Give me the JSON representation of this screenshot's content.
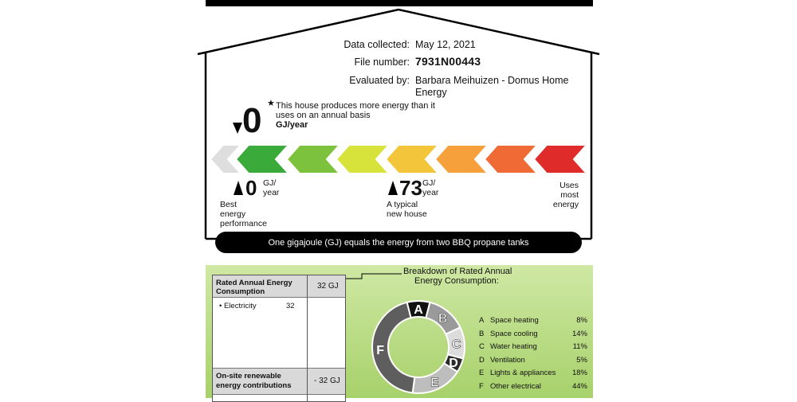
{
  "house_info": {
    "date_label": "Data collected:",
    "date_value": "May 12, 2021",
    "file_label": "File number:",
    "file_value": "7931N00443",
    "evaluator_label": "Evaluated by:",
    "evaluator_line1": "Barbara Meihuizen - Domus Home",
    "evaluator_line2": "Energy"
  },
  "rating": {
    "value": "0",
    "star": "★",
    "note_line1": "This house produces more energy than it",
    "note_line2": "uses on an annual basis",
    "unit": "GJ/year"
  },
  "scale": {
    "best_value": "0",
    "best_unit_line1": "GJ/",
    "best_unit_line2": "year",
    "best_label_line1": "Best",
    "best_label_line2": "energy",
    "best_label_line3": "performance",
    "typical_value": "73",
    "typical_unit_line1": "GJ/",
    "typical_unit_line2": "year",
    "typical_label_line1": "A typical",
    "typical_label_line2": "new house",
    "worst_label_line1": "Uses",
    "worst_label_line2": "most",
    "worst_label_line3": "energy",
    "chevron_colors": [
      "#dedede",
      "#3aab3a",
      "#7cc23c",
      "#d7e23a",
      "#f2c53a",
      "#f5a03a",
      "#ef6a35",
      "#e02b2b"
    ]
  },
  "footer_note": "One gigajoule (GJ) equals the energy from two BBQ propane tanks",
  "consumption_table": {
    "rated_label_line1": "Rated Annual Energy",
    "rated_label_line2": "Consumption",
    "rated_value": "32 GJ",
    "electricity_label": "• Electricity",
    "electricity_value": "32",
    "renewable_label_line1": "On-site renewable",
    "renewable_label_line2": "energy contributions",
    "renewable_value": "- 32 GJ"
  },
  "breakdown": {
    "title_line1": "Breakdown of Rated Annual",
    "title_line2": "Energy Consumption:",
    "items": [
      {
        "letter": "A",
        "name": "Space heating",
        "pct": "8%",
        "value": 8,
        "color": "#111111"
      },
      {
        "letter": "B",
        "name": "Space cooling",
        "pct": "14%",
        "value": 14,
        "color": "#9a9a9a"
      },
      {
        "letter": "C",
        "name": "Water heating",
        "pct": "11%",
        "value": 11,
        "color": "#dcdcdc"
      },
      {
        "letter": "D",
        "name": "Ventilation",
        "pct": "5%",
        "value": 5,
        "color": "#2a2a2a"
      },
      {
        "letter": "E",
        "name": "Lights & appliances",
        "pct": "18%",
        "value": 18,
        "color": "#bdbdbd"
      },
      {
        "letter": "F",
        "name": "Other electrical",
        "pct": "44%",
        "value": 44,
        "color": "#5e5e5e"
      }
    ]
  }
}
